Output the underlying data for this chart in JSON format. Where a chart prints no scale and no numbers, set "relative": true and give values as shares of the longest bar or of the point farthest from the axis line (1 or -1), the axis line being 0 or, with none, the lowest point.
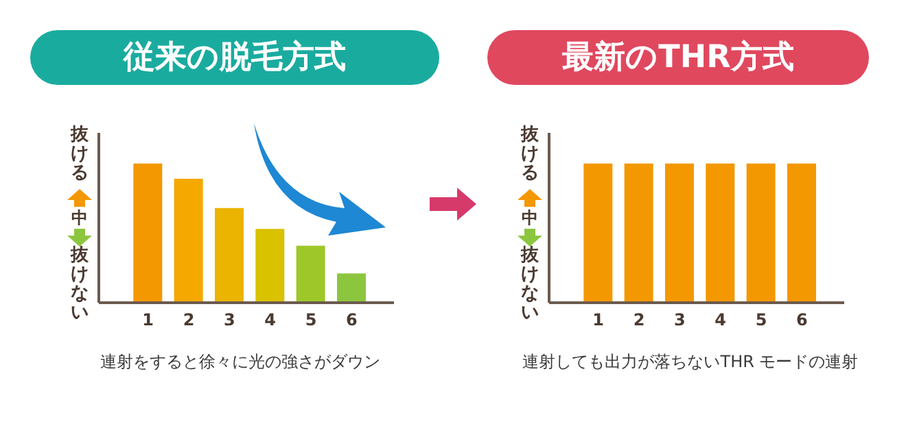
{
  "chart_data": [
    {
      "type": "bar",
      "title": "従来の脱毛方式",
      "relative": true,
      "categories": [
        "1",
        "2",
        "3",
        "4",
        "5",
        "6"
      ],
      "values": [
        1,
        0.89,
        0.68,
        0.53,
        0.41,
        0.21
      ],
      "colors": [
        "#f39800",
        "#f5a800",
        "#ebb400",
        "#d9c200",
        "#9ec82a",
        "#8cc63f"
      ],
      "annotations": [
        "抜ける",
        "中",
        "抜けない",
        "連射をすると徐々に光の強さがダウン"
      ]
    },
    {
      "type": "bar",
      "title": "最新のTHR方式",
      "relative": true,
      "categories": [
        "1",
        "2",
        "3",
        "4",
        "5",
        "6"
      ],
      "values": [
        1,
        1,
        1,
        1,
        1,
        1
      ],
      "color": "#f39800",
      "annotations": [
        "抜ける",
        "中",
        "抜けない",
        "連射しても出力が落ちないTHR モードの連射"
      ]
    }
  ]
}
